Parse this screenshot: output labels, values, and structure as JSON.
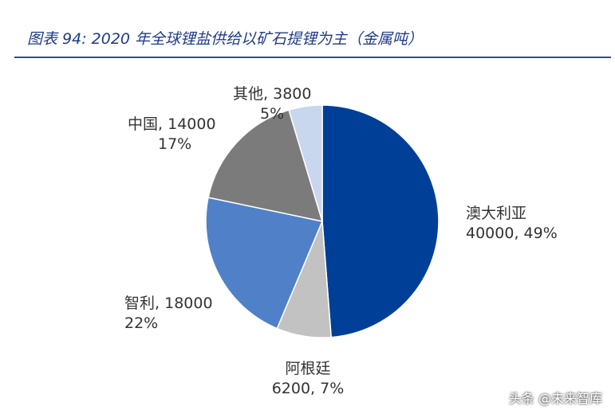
{
  "header": {
    "title": "图表 94: 2020 年全球锂盐供给以矿石提锂为主（金属吨）"
  },
  "watermark": "头条 @未来智库",
  "chart_data": {
    "type": "pie",
    "title": "图表 94: 2020 年全球锂盐供给以矿石提锂为主（金属吨）",
    "unit": "金属吨",
    "start_angle": "12 o'clock, clockwise",
    "slices": [
      {
        "label": "澳大利亚",
        "value": 40000,
        "percent": "49%",
        "value_text": "40000, 49%",
        "color": "#003f98"
      },
      {
        "label": "阿根廷",
        "value": 6200,
        "percent": "7%",
        "value_text": "6200, 7%",
        "color": "#c2c2c2"
      },
      {
        "label": "智利",
        "value": 18000,
        "percent": "22%",
        "value_text": "18000, 22%",
        "color": "#5081c8"
      },
      {
        "label": "中国",
        "value": 14000,
        "percent": "17%",
        "value_text": "14000, 17%",
        "color": "#7b7b7b"
      },
      {
        "label": "其他",
        "value": 3800,
        "percent": "5%",
        "value_text": "3800, 5%",
        "color": "#c8d6ee"
      }
    ]
  }
}
